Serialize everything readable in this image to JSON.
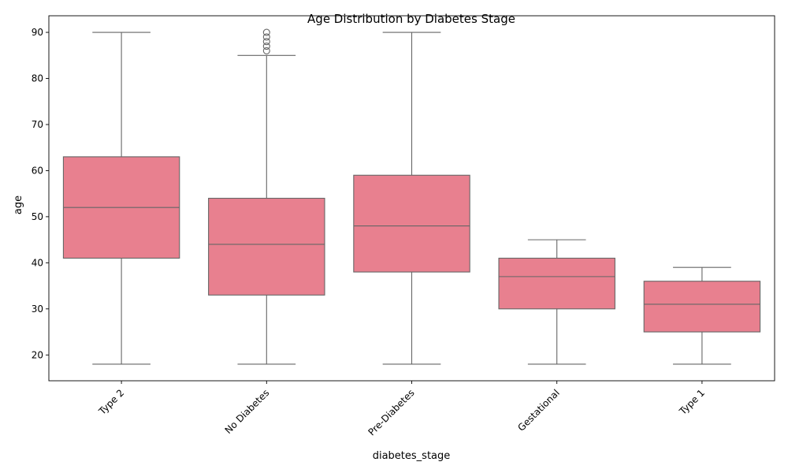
{
  "chart_data": {
    "type": "box",
    "title": "Age Distribution by Diabetes Stage",
    "xlabel": "diabetes_stage",
    "ylabel": "age",
    "ylim": [
      14.4,
      93.6
    ],
    "yticks": [
      20,
      30,
      40,
      50,
      60,
      70,
      80,
      90
    ],
    "categories": [
      "Type 2",
      "No Diabetes",
      "Pre-Diabetes",
      "Gestational",
      "Type 1"
    ],
    "boxes": [
      {
        "category": "Type 2",
        "whisker_low": 18,
        "q1": 41,
        "median": 52,
        "q3": 63,
        "whisker_high": 90,
        "outliers": []
      },
      {
        "category": "No Diabetes",
        "whisker_low": 18,
        "q1": 33,
        "median": 44,
        "q3": 54,
        "whisker_high": 85,
        "outliers": [
          86,
          87,
          88,
          89,
          90
        ]
      },
      {
        "category": "Pre-Diabetes",
        "whisker_low": 18,
        "q1": 38,
        "median": 48,
        "q3": 59,
        "whisker_high": 90,
        "outliers": []
      },
      {
        "category": "Gestational",
        "whisker_low": 18,
        "q1": 30,
        "median": 37,
        "q3": 41,
        "whisker_high": 45,
        "outliers": []
      },
      {
        "category": "Type 1",
        "whisker_low": 18,
        "q1": 25,
        "median": 31,
        "q3": 36,
        "whisker_high": 39,
        "outliers": []
      }
    ],
    "box_color": "#e8808f",
    "line_color": "#666666",
    "grid": false,
    "legend": "none",
    "x_tick_rotation_deg": 45
  }
}
